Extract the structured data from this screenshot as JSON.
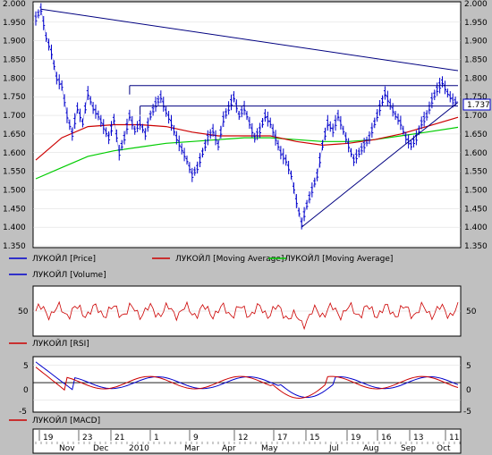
{
  "chart_data": [
    {
      "type": "line",
      "panel": "price",
      "ylim": [
        1350,
        2000
      ],
      "yticks": [
        "2.000",
        "1.950",
        "1.900",
        "1.850",
        "1.800",
        "1.750",
        "1.700",
        "1.650",
        "1.600",
        "1.550",
        "1.500",
        "1.450",
        "1.400",
        "1.350"
      ],
      "last_price_label": "1.737",
      "series": [
        {
          "name": "ЛУКОЙЛ [Price]",
          "color": "#0000cc"
        },
        {
          "name": "ЛУКОЙЛ [Moving Average]",
          "color": "#cc0000"
        },
        {
          "name": "ЛУКОЙЛ [Moving Average]",
          "color": "#00cc00"
        }
      ],
      "extra_legend": {
        "name": "ЛУКОЙЛ [Volume]",
        "color": "#0000cc"
      },
      "price_path": [
        [
          0,
          1960
        ],
        [
          2,
          1985
        ],
        [
          4,
          1910
        ],
        [
          6,
          1870
        ],
        [
          8,
          1800
        ],
        [
          10,
          1780
        ],
        [
          12,
          1700
        ],
        [
          14,
          1650
        ],
        [
          16,
          1720
        ],
        [
          18,
          1680
        ],
        [
          20,
          1760
        ],
        [
          22,
          1720
        ],
        [
          24,
          1700
        ],
        [
          26,
          1670
        ],
        [
          28,
          1640
        ],
        [
          30,
          1690
        ],
        [
          32,
          1600
        ],
        [
          34,
          1640
        ],
        [
          36,
          1700
        ],
        [
          38,
          1660
        ],
        [
          40,
          1680
        ],
        [
          42,
          1650
        ],
        [
          44,
          1700
        ],
        [
          46,
          1730
        ],
        [
          48,
          1750
        ],
        [
          50,
          1710
        ],
        [
          52,
          1680
        ],
        [
          54,
          1640
        ],
        [
          56,
          1610
        ],
        [
          58,
          1580
        ],
        [
          60,
          1540
        ],
        [
          62,
          1560
        ],
        [
          64,
          1600
        ],
        [
          66,
          1640
        ],
        [
          68,
          1660
        ],
        [
          70,
          1620
        ],
        [
          72,
          1690
        ],
        [
          74,
          1720
        ],
        [
          76,
          1750
        ],
        [
          78,
          1700
        ],
        [
          80,
          1720
        ],
        [
          82,
          1680
        ],
        [
          84,
          1640
        ],
        [
          86,
          1660
        ],
        [
          88,
          1700
        ],
        [
          90,
          1680
        ],
        [
          92,
          1640
        ],
        [
          94,
          1600
        ],
        [
          96,
          1580
        ],
        [
          98,
          1540
        ],
        [
          100,
          1470
        ],
        [
          102,
          1410
        ],
        [
          104,
          1460
        ],
        [
          106,
          1500
        ],
        [
          108,
          1540
        ],
        [
          110,
          1620
        ],
        [
          112,
          1680
        ],
        [
          114,
          1660
        ],
        [
          116,
          1700
        ],
        [
          118,
          1660
        ],
        [
          120,
          1620
        ],
        [
          122,
          1580
        ],
        [
          124,
          1600
        ],
        [
          126,
          1620
        ],
        [
          128,
          1640
        ],
        [
          130,
          1680
        ],
        [
          132,
          1720
        ],
        [
          134,
          1760
        ],
        [
          136,
          1730
        ],
        [
          138,
          1700
        ],
        [
          140,
          1680
        ],
        [
          142,
          1640
        ],
        [
          144,
          1620
        ],
        [
          146,
          1640
        ],
        [
          148,
          1680
        ],
        [
          150,
          1700
        ],
        [
          152,
          1740
        ],
        [
          154,
          1770
        ],
        [
          156,
          1790
        ],
        [
          158,
          1760
        ],
        [
          160,
          1740
        ],
        [
          162,
          1737
        ]
      ],
      "ma_red": [
        [
          0,
          1580
        ],
        [
          10,
          1640
        ],
        [
          20,
          1670
        ],
        [
          30,
          1675
        ],
        [
          40,
          1675
        ],
        [
          50,
          1670
        ],
        [
          60,
          1655
        ],
        [
          70,
          1645
        ],
        [
          80,
          1645
        ],
        [
          90,
          1645
        ],
        [
          100,
          1630
        ],
        [
          110,
          1620
        ],
        [
          120,
          1625
        ],
        [
          130,
          1635
        ],
        [
          140,
          1650
        ],
        [
          150,
          1670
        ],
        [
          162,
          1695
        ]
      ],
      "ma_green": [
        [
          0,
          1530
        ],
        [
          10,
          1560
        ],
        [
          20,
          1590
        ],
        [
          30,
          1605
        ],
        [
          40,
          1615
        ],
        [
          50,
          1625
        ],
        [
          60,
          1630
        ],
        [
          70,
          1635
        ],
        [
          80,
          1640
        ],
        [
          90,
          1640
        ],
        [
          100,
          1635
        ],
        [
          110,
          1630
        ],
        [
          120,
          1630
        ],
        [
          130,
          1635
        ],
        [
          140,
          1645
        ],
        [
          150,
          1655
        ],
        [
          162,
          1668
        ]
      ],
      "trendlines": [
        {
          "from": [
            2,
            1985
          ],
          "to": [
            162,
            1820
          ]
        },
        {
          "from": [
            102,
            1400
          ],
          "to": [
            162,
            1735
          ]
        }
      ],
      "levels": [
        {
          "y": 1780,
          "x0": 36,
          "x1": 162
        },
        {
          "y": 1725,
          "x0": 40,
          "x1": 162
        }
      ]
    },
    {
      "type": "line",
      "panel": "rsi",
      "ylim": [
        0,
        100
      ],
      "yticks": [
        "50"
      ],
      "series": [
        {
          "name": "ЛУКОЙЛ [RSI]",
          "color": "#cc0000"
        }
      ]
    },
    {
      "type": "line",
      "panel": "macd",
      "ylim": [
        -8,
        7
      ],
      "yticks": [
        "5",
        "0",
        "-5"
      ],
      "series": [
        {
          "name": "ЛУКОЙЛ [MACD]",
          "color": "#cc0000"
        },
        {
          "name": "",
          "color": "#0000cc"
        }
      ]
    }
  ],
  "xaxis": {
    "day_labels": [
      "19",
      "23",
      "21",
      "1",
      "9",
      "12",
      "17",
      "15",
      "19",
      "16",
      "13",
      "11"
    ],
    "month_labels": [
      "Nov",
      "Dec",
      "2010",
      "Mar",
      "Apr",
      "May",
      "Jul",
      "Aug",
      "Sep",
      "Oct"
    ]
  }
}
